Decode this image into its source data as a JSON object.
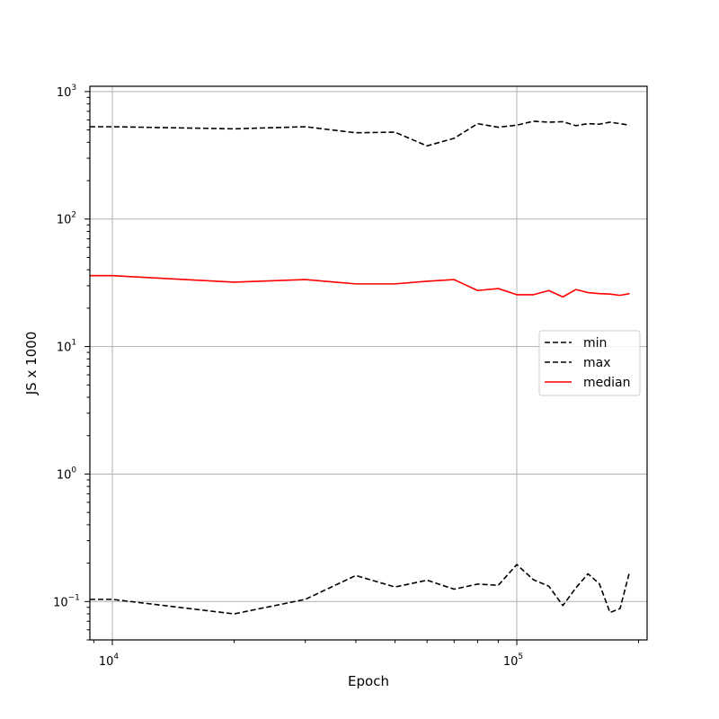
{
  "chart_data": {
    "type": "line",
    "xlabel": "Epoch",
    "ylabel": "JS x 1000",
    "xscale": "log",
    "yscale": "log",
    "xlim": [
      8800,
      210000
    ],
    "ylim": [
      0.05,
      1100
    ],
    "grid": true,
    "legend_position": "center-right",
    "x_ticks": [
      {
        "value": 10000,
        "base": "10",
        "exp": "4"
      },
      {
        "value": 100000,
        "base": "10",
        "exp": "5"
      }
    ],
    "y_ticks": [
      {
        "value": 0.1,
        "base": "10",
        "exp": "−1"
      },
      {
        "value": 1,
        "base": "10",
        "exp": "0"
      },
      {
        "value": 10,
        "base": "10",
        "exp": "1"
      },
      {
        "value": 100,
        "base": "10",
        "exp": "2"
      },
      {
        "value": 1000,
        "base": "10",
        "exp": "3"
      }
    ],
    "x": [
      8800,
      10000,
      20000,
      30000,
      40000,
      50000,
      60000,
      70000,
      80000,
      90000,
      100000,
      110000,
      120000,
      130000,
      140000,
      150000,
      160000,
      170000,
      180000,
      190000
    ],
    "series": [
      {
        "name": "min",
        "color": "#000000",
        "dash": "dashed",
        "values": [
          0.104,
          0.104,
          0.08,
          0.104,
          0.16,
          0.13,
          0.147,
          0.125,
          0.137,
          0.134,
          0.195,
          0.148,
          0.132,
          0.093,
          0.128,
          0.165,
          0.138,
          0.082,
          0.088,
          0.17
        ]
      },
      {
        "name": "max",
        "color": "#000000",
        "dash": "dashed",
        "values": [
          530,
          530,
          510,
          530,
          475,
          480,
          375,
          430,
          560,
          525,
          545,
          585,
          575,
          580,
          540,
          560,
          555,
          575,
          560,
          545
        ]
      },
      {
        "name": "median",
        "color": "#ff0000",
        "dash": "solid",
        "values": [
          36,
          36,
          32,
          33.5,
          31,
          31,
          32.5,
          33.5,
          27.5,
          28.5,
          25.5,
          25.5,
          27.5,
          24.5,
          28,
          26.5,
          26,
          25.8,
          25.2,
          26
        ]
      }
    ]
  }
}
